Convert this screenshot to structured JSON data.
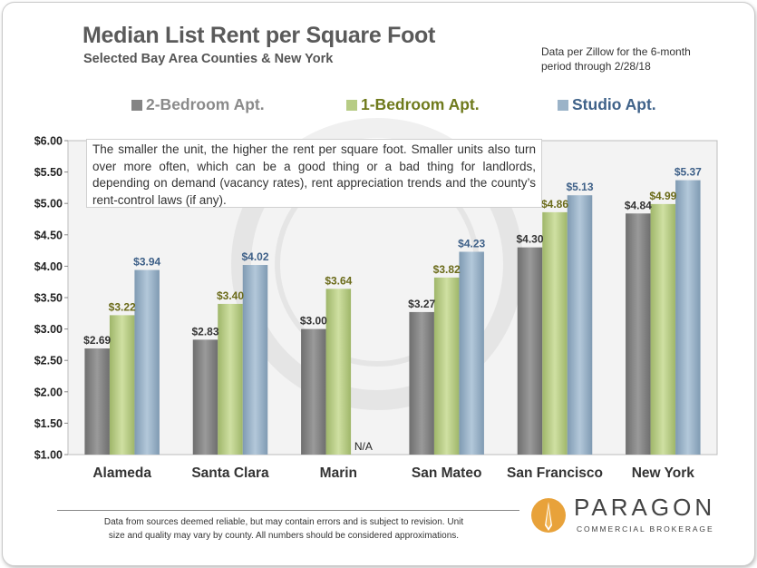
{
  "header": {
    "title": "Median List Rent per Square Foot",
    "subtitle": "Selected Bay Area Counties & New York",
    "source_line1": "Data per Zillow for the 6-month",
    "source_line2": "period through 2/28/18"
  },
  "note": "The smaller the unit, the higher the rent per square foot.  Smaller units also turn over more often, which can be a good thing or a bad thing for landlords, depending on demand (vacancy rates), rent appreciation trends and the county’s rent-control laws (if any).",
  "footer": {
    "line1": "Data from sources deemed reliable, but may contain errors and is subject to revision. Unit",
    "line2": "size and quality may vary by county. All numbers  should be considered approximations.",
    "logo_name": "PARAGON",
    "logo_tagline": "COMMERCIAL BROKERAGE"
  },
  "colors": {
    "two_bed": "#848484",
    "one_bed": "#b7cc85",
    "studio": "#9bb3c8",
    "two_bed_label": "#333333",
    "one_bed_label": "#6b6b1a",
    "studio_label": "#3e6088",
    "legend_two_bed": "#8a8a8a",
    "legend_one_bed": "#6f7a1c",
    "legend_studio": "#3f6289"
  },
  "chart_data": {
    "type": "bar",
    "categories": [
      "Alameda",
      "Santa Clara",
      "Marin",
      "San Mateo",
      "San Francisco",
      "New York"
    ],
    "series": [
      {
        "name": "2-Bedroom Apt.",
        "values": [
          2.69,
          2.83,
          3.0,
          3.27,
          4.3,
          4.84
        ],
        "labels": [
          "$2.69",
          "$2.83",
          "$3.00",
          "$3.27",
          "$4.30",
          "$4.84"
        ]
      },
      {
        "name": "1-Bedroom Apt.",
        "values": [
          3.22,
          3.4,
          3.64,
          3.82,
          4.86,
          4.99
        ],
        "labels": [
          "$3.22",
          "$3.40",
          "$3.64",
          "$3.82",
          "$4.86",
          "$4.99"
        ]
      },
      {
        "name": "Studio Apt.",
        "values": [
          3.94,
          4.02,
          null,
          4.23,
          5.13,
          5.37
        ],
        "labels": [
          "$3.94",
          "$4.02",
          "N/A",
          "$4.23",
          "$5.13",
          "$5.37"
        ]
      }
    ],
    "yticks": [
      "$1.00",
      "$1.50",
      "$2.00",
      "$2.50",
      "$3.00",
      "$3.50",
      "$4.00",
      "$4.50",
      "$5.00",
      "$5.50",
      "$6.00"
    ],
    "ylim": [
      1.0,
      6.0
    ],
    "title": "Median List Rent per Square Foot",
    "xlabel": "",
    "ylabel": "",
    "grid": false,
    "legend": "top"
  }
}
